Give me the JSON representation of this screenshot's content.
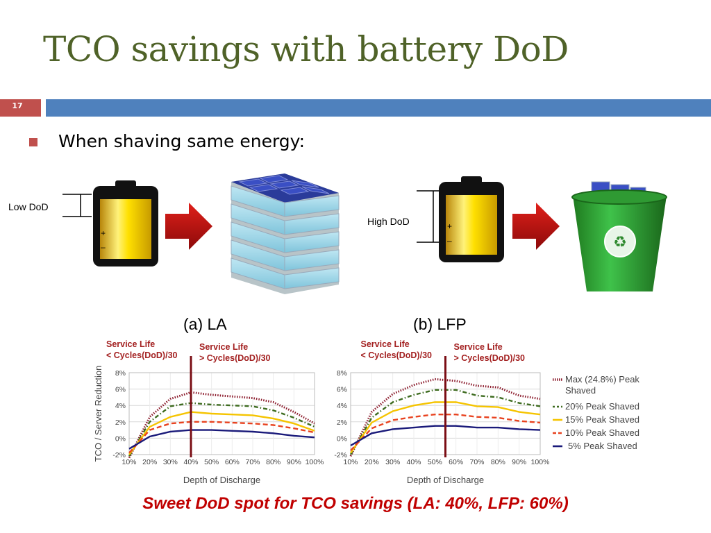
{
  "slide": {
    "title": "TCO savings with battery DoD",
    "number": "17",
    "bullet": "When shaving same energy:",
    "low_dod_label": "Low DoD",
    "high_dod_label": "High DoD",
    "battery_plus": "+",
    "battery_minus": "–",
    "conclusion": "Sweet DoD spot for TCO savings  (LA: 40%, LFP: 60%)",
    "colors": {
      "title": "#4f6228",
      "accent": "#c0504d",
      "bar": "#4f81bd",
      "conclusion": "#c00000"
    },
    "icons": [
      "battery-icon",
      "arrow-right-icon",
      "battery-pack-icon",
      "recycle-bin-icon"
    ]
  },
  "chart_data": [
    {
      "type": "line",
      "label": "(a) LA",
      "service_life_left": [
        "Service Life",
        "< Cycles(DoD)/30"
      ],
      "service_life_right": [
        "Service Life",
        "> Cycles(DoD)/30"
      ],
      "xlabel": "Depth of Discharge",
      "ylabel": "TCO / Server Reduction",
      "x": [
        "10%",
        "20%",
        "30%",
        "40%",
        "50%",
        "60%",
        "70%",
        "80%",
        "90%",
        "100%"
      ],
      "yticks": [
        "8%",
        "6%",
        "4%",
        "2%",
        "0%",
        "-2%"
      ],
      "ylim": [
        -2,
        8
      ],
      "vline_x": 4,
      "series": [
        {
          "name": "Max (24.8%) Peak Shaved",
          "color": "#8b1a2b",
          "style": "dotted",
          "values": [
            -2.4,
            2.6,
            4.8,
            5.6,
            5.3,
            5.1,
            4.9,
            4.4,
            3.2,
            1.8
          ]
        },
        {
          "name": "20% Peak Shaved",
          "color": "#3d6b1f",
          "style": "dashdot",
          "values": [
            -2.2,
            2.0,
            3.9,
            4.3,
            4.1,
            4.0,
            3.9,
            3.4,
            2.5,
            1.4
          ]
        },
        {
          "name": "15% Peak Shaved",
          "color": "#f5c400",
          "style": "solid",
          "values": [
            -2.0,
            1.4,
            2.6,
            3.2,
            3.0,
            2.9,
            2.8,
            2.4,
            1.8,
            0.9
          ]
        },
        {
          "name": "10% Peak Shaved",
          "color": "#e8421f",
          "style": "dashed",
          "values": [
            -1.8,
            1.0,
            1.8,
            2.0,
            2.0,
            1.9,
            1.8,
            1.6,
            1.2,
            0.7
          ]
        },
        {
          "name": "5% Peak Shaved",
          "color": "#1a1a7a",
          "style": "solid",
          "values": [
            -1.3,
            0.2,
            0.8,
            1.0,
            1.0,
            0.9,
            0.8,
            0.6,
            0.3,
            0.1
          ]
        }
      ]
    },
    {
      "type": "line",
      "label": "(b) LFP",
      "service_life_left": [
        "Service Life",
        "< Cycles(DoD)/30"
      ],
      "service_life_right": [
        "Service Life",
        "> Cycles(DoD)/30"
      ],
      "xlabel": "Depth of Discharge",
      "ylabel": "",
      "x": [
        "10%",
        "20%",
        "30%",
        "40%",
        "50%",
        "60%",
        "70%",
        "80%",
        "90%",
        "100%"
      ],
      "yticks": [
        "8%",
        "6%",
        "4%",
        "2%",
        "0%",
        "-2%"
      ],
      "ylim": [
        -2,
        8
      ],
      "vline_x": 5.5,
      "series": [
        {
          "name": "Max (24.8%) Peak Shaved",
          "color": "#8b1a2b",
          "style": "dotted",
          "values": [
            -2.2,
            3.2,
            5.4,
            6.5,
            7.2,
            7.0,
            6.4,
            6.2,
            5.2,
            4.8
          ]
        },
        {
          "name": "20% Peak Shaved",
          "color": "#3d6b1f",
          "style": "dashdot",
          "values": [
            -2.0,
            2.5,
            4.4,
            5.3,
            5.9,
            5.9,
            5.2,
            5.0,
            4.3,
            3.9
          ]
        },
        {
          "name": "15% Peak Shaved",
          "color": "#f5c400",
          "style": "solid",
          "values": [
            -1.8,
            1.9,
            3.3,
            4.0,
            4.4,
            4.4,
            3.9,
            3.8,
            3.2,
            2.9
          ]
        },
        {
          "name": "10% Peak Shaved",
          "color": "#e8421f",
          "style": "dashed",
          "values": [
            -1.5,
            1.2,
            2.2,
            2.6,
            2.9,
            2.9,
            2.6,
            2.5,
            2.1,
            1.9
          ]
        },
        {
          "name": "5% Peak Shaved",
          "color": "#1a1a7a",
          "style": "solid",
          "values": [
            -0.9,
            0.6,
            1.1,
            1.3,
            1.5,
            1.5,
            1.3,
            1.3,
            1.1,
            1.0
          ]
        }
      ]
    }
  ]
}
